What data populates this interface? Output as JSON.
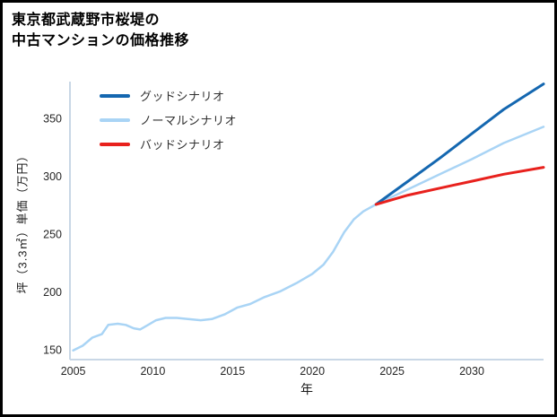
{
  "title": {
    "line1": "東京都武蔵野市桜堤の",
    "line2": "中古マンションの価格推移"
  },
  "chart_data": {
    "type": "line",
    "title": "東京都武蔵野市桜堤の中古マンションの価格推移",
    "xlabel": "年",
    "ylabel": "坪（3.3㎡）単価（万円）",
    "xlim": [
      2004.8,
      2034.5
    ],
    "ylim": [
      142,
      382
    ],
    "x_ticks": [
      2005,
      2010,
      2015,
      2020,
      2025,
      2030
    ],
    "y_ticks": [
      150,
      200,
      250,
      300,
      350
    ],
    "grid": false,
    "legend_position": "top-left-inside",
    "axis_color": "#c9d7e6",
    "tick_color": "#262626",
    "legend": [
      {
        "name": "グッドシナリオ",
        "color": "#1467b0"
      },
      {
        "name": "ノーマルシナリオ",
        "color": "#a9d4f5"
      },
      {
        "name": "バッドシナリオ",
        "color": "#e8211d"
      }
    ],
    "series": [
      {
        "key": "normal",
        "name": "ノーマルシナリオ",
        "color": "#a9d4f5",
        "width": 2.5,
        "x": [
          2005,
          2005.6,
          2006.2,
          2006.8,
          2007.2,
          2007.8,
          2008.3,
          2008.8,
          2009.2,
          2009.7,
          2010.2,
          2010.8,
          2011.5,
          2012.2,
          2013,
          2013.7,
          2014.5,
          2015.3,
          2016.1,
          2017,
          2018,
          2019,
          2020,
          2020.7,
          2021.3,
          2022,
          2022.6,
          2023.2,
          2024,
          2026,
          2028,
          2030,
          2032,
          2034.5
        ],
        "y": [
          150,
          154,
          161,
          164,
          172,
          173,
          172,
          169,
          168,
          172,
          176,
          178,
          178,
          177,
          176,
          177,
          181,
          187,
          190,
          196,
          201,
          208,
          216,
          224,
          235,
          252,
          263,
          270,
          276,
          289,
          302,
          315,
          329,
          343
        ]
      },
      {
        "key": "good",
        "name": "グッドシナリオ",
        "color": "#1467b0",
        "width": 3,
        "x": [
          2024,
          2026,
          2028,
          2030,
          2032,
          2034.5
        ],
        "y": [
          276,
          296,
          316,
          337,
          358,
          380
        ]
      },
      {
        "key": "bad",
        "name": "バッドシナリオ",
        "color": "#e8211d",
        "width": 3,
        "x": [
          2024,
          2026,
          2028,
          2030,
          2032,
          2034.5
        ],
        "y": [
          276,
          284,
          290,
          296,
          302,
          308
        ]
      }
    ]
  }
}
